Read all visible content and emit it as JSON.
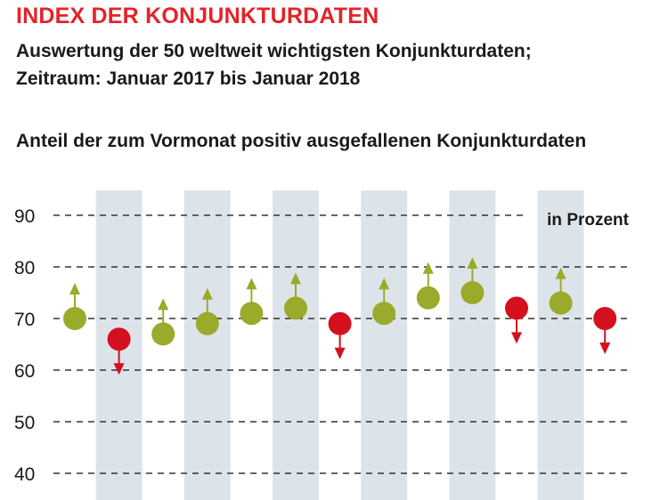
{
  "header": {
    "title": "INDEX DER KONJUNKTURDATEN",
    "subtitle_line1": "Auswertung der 50 weltweit wichtigsten Konjunkturdaten;",
    "subtitle_line2": "Zeitraum: Januar 2017 bis Januar 2018",
    "chart_heading": "Anteil der zum Vormonat positiv ausgefallenen Konjunkturdaten"
  },
  "chart_data": {
    "type": "scatter",
    "title": "Anteil der zum Vormonat positiv ausgefallenen Konjunkturdaten",
    "unit_label": "in Prozent",
    "ylim": [
      40,
      90
    ],
    "yticks": [
      40,
      50,
      60,
      70,
      80,
      90
    ],
    "x": [
      1,
      2,
      3,
      4,
      5,
      6,
      7,
      8,
      9,
      10,
      11,
      12,
      13
    ],
    "values": [
      70,
      66,
      67,
      69,
      71,
      72,
      69,
      71,
      74,
      75,
      72,
      73,
      70
    ],
    "direction": [
      "up",
      "down",
      "up",
      "up",
      "up",
      "up",
      "down",
      "up",
      "up",
      "up",
      "down",
      "up",
      "down"
    ],
    "grid": "horizontal dashed",
    "colors": {
      "up": "#9aaa2a",
      "down": "#d4101f",
      "band": "#dde4e9"
    }
  }
}
